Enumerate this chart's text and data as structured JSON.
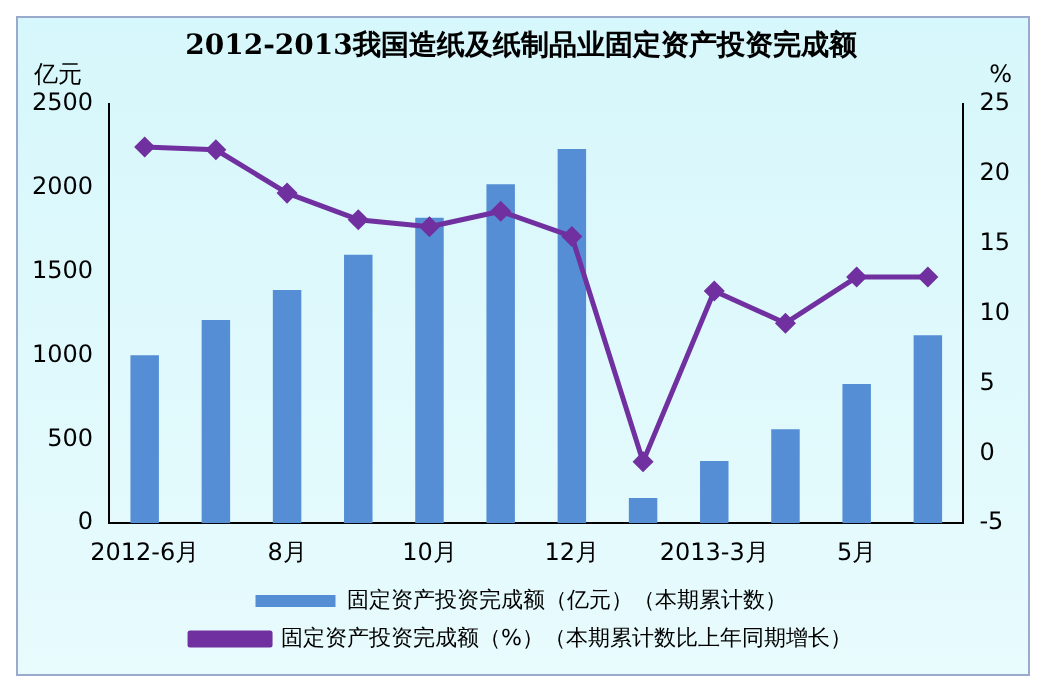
{
  "chart_data": {
    "type": "bar",
    "title": "2012-2013我国造纸及纸制品业固定资产投资完成额",
    "ylabel": "亿元",
    "y2label": "%",
    "categories": [
      "2012-6月",
      null,
      "8月",
      null,
      "10月",
      null,
      "12月",
      null,
      "2013-3月",
      null,
      "5月",
      null
    ],
    "series": [
      {
        "name": "固定资产投资完成额（亿元）（本期累计数）",
        "color": "#558ed5",
        "values": [
          1000,
          1210,
          1390,
          1600,
          1820,
          2020,
          2230,
          150,
          370,
          560,
          830,
          1120
        ]
      },
      {
        "name": "固定资产投资完成额（%）（本期累计数比上年同期增长）",
        "type": "line",
        "axis": "y2",
        "color": "#7030a0",
        "marker": "diamond",
        "values": [
          21.9,
          21.7,
          18.6,
          16.7,
          16.2,
          17.3,
          15.5,
          -0.6,
          11.6,
          9.3,
          12.6,
          12.6
        ]
      }
    ],
    "ylim": [
      0,
      2500
    ],
    "yticks": [
      0,
      500,
      1000,
      1500,
      2000,
      2500
    ],
    "y2lim": [
      -5,
      25
    ],
    "y2ticks": [
      -5,
      0,
      5,
      10,
      15,
      20,
      25
    ],
    "grid": false,
    "legend": "bottom"
  }
}
